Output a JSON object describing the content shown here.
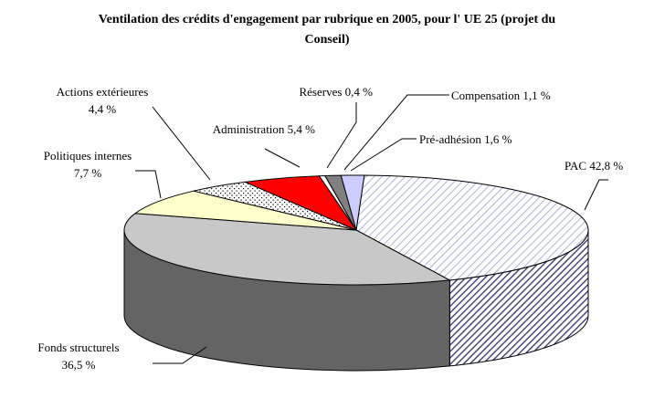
{
  "chart_data": {
    "type": "pie",
    "title_line1": "Ventilation des crédits d'engagement par  rubrique en 2005, pour l' UE 25 (projet du",
    "title_line2": "Conseil)",
    "series": [
      {
        "name": "PAC",
        "value": 42.8,
        "label": "PAC 42,8 %",
        "label_lines": [
          "PAC 42,8 %"
        ],
        "color": "#ffffff",
        "hatch": "#9aa0d8",
        "side_color": "#ffffff",
        "side_hatch": "#303070"
      },
      {
        "name": "Fonds structurels",
        "value": 36.5,
        "label": "Fonds structurels 36,5 %",
        "label_lines": [
          "Fonds structurels",
          "36,5 %"
        ],
        "color": "#c8c8c8",
        "side_color": "#646464"
      },
      {
        "name": "Politiques internes",
        "value": 7.7,
        "label": "Politiques internes 7,7 %",
        "label_lines": [
          "Politiques internes",
          "7,7 %"
        ],
        "color": "#ffffcc",
        "side_color": "#999966"
      },
      {
        "name": "Actions extérieures",
        "value": 4.4,
        "label": "Actions extérieures 4,4 %",
        "label_lines": [
          "Actions extérieures",
          "4,4 %"
        ],
        "color": "#ffffff",
        "dots": "#000000",
        "side_color": "#999999"
      },
      {
        "name": "Administration",
        "value": 5.4,
        "label": "Administration 5,4 %",
        "label_lines": [
          "Administration 5,4 %"
        ],
        "color": "#ff0000",
        "side_color": "#990000"
      },
      {
        "name": "Réserves",
        "value": 0.4,
        "label": "Réserves 0,4 %",
        "label_lines": [
          "Réserves 0,4 %"
        ],
        "color": "#ffffff",
        "side_color": "#999999"
      },
      {
        "name": "Compensation",
        "value": 1.1,
        "label": "Compensation 1,1 %",
        "label_lines": [
          "Compensation 1,1 %"
        ],
        "color": "#808080",
        "side_color": "#4d4d4d"
      },
      {
        "name": "Pré-adhésion",
        "value": 1.6,
        "label": "Pré-adhésion 1,6 %",
        "label_lines": [
          "Pré-adhésion 1,6 %"
        ],
        "color": "#ccccff",
        "side_color": "#7a7a99"
      }
    ],
    "legend": "none",
    "style": "3d-pie"
  }
}
